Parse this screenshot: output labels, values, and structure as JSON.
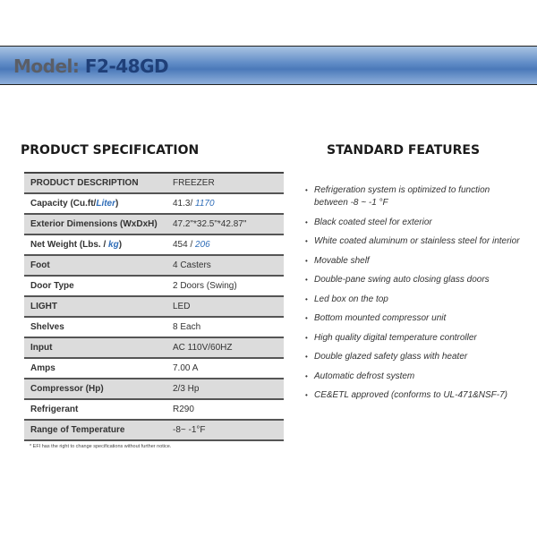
{
  "header": {
    "label": "Model:",
    "model": "F2-48GD",
    "gradient": [
      "#a9c3e2",
      "#4b79b9"
    ]
  },
  "spec": {
    "title": "PRODUCT SPECIFICATION",
    "rows": [
      {
        "k": "PRODUCT DESCRIPTION",
        "v": "FREEZER"
      },
      {
        "k": "Capacity (Cu.ft/",
        "k_blue": "Liter",
        "k_end": ")",
        "v": "41.3/ ",
        "v_blue": "1170"
      },
      {
        "k": "Exterior Dimensions (WxDxH)",
        "v": "47.2\"*32.5\"*42.87\""
      },
      {
        "k": "Net Weight (Lbs. / ",
        "k_blue": "kg",
        "k_end": ")",
        "v": "454 / ",
        "v_blue": "206"
      },
      {
        "k": "Foot",
        "v": "4 Casters"
      },
      {
        "k": "Door Type",
        "v": "2 Doors (Swing)"
      },
      {
        "k": "LIGHT",
        "v": "LED"
      },
      {
        "k": "Shelves",
        "v": "8 Each"
      },
      {
        "k": "Input",
        "v": "AC 110V/60HZ"
      },
      {
        "k": "Amps",
        "v": "7.00 A"
      },
      {
        "k": "Compressor (Hp)",
        "v": "2/3 Hp"
      },
      {
        "k": "Refrigerant",
        "v": "R290"
      },
      {
        "k": "Range of Temperature",
        "v": "-8~ -1°F"
      }
    ],
    "note": "* EFI has the right to change specifications without further notice."
  },
  "features": {
    "title": "STANDARD FEATURES",
    "items": [
      "Refrigeration system is optimized to function between -8 ~ -1 °F",
      "Black coated steel for exterior",
      "White coated aluminum or stainless steel for interior",
      "Movable shelf",
      "Double-pane swing auto closing glass doors",
      "Led box on the top",
      "Bottom mounted compressor unit",
      "High quality digital temperature controller",
      "Double glazed safety glass with heater",
      "Automatic defrost system",
      "CE&ETL approved (conforms to UL-471&NSF-7)"
    ]
  }
}
